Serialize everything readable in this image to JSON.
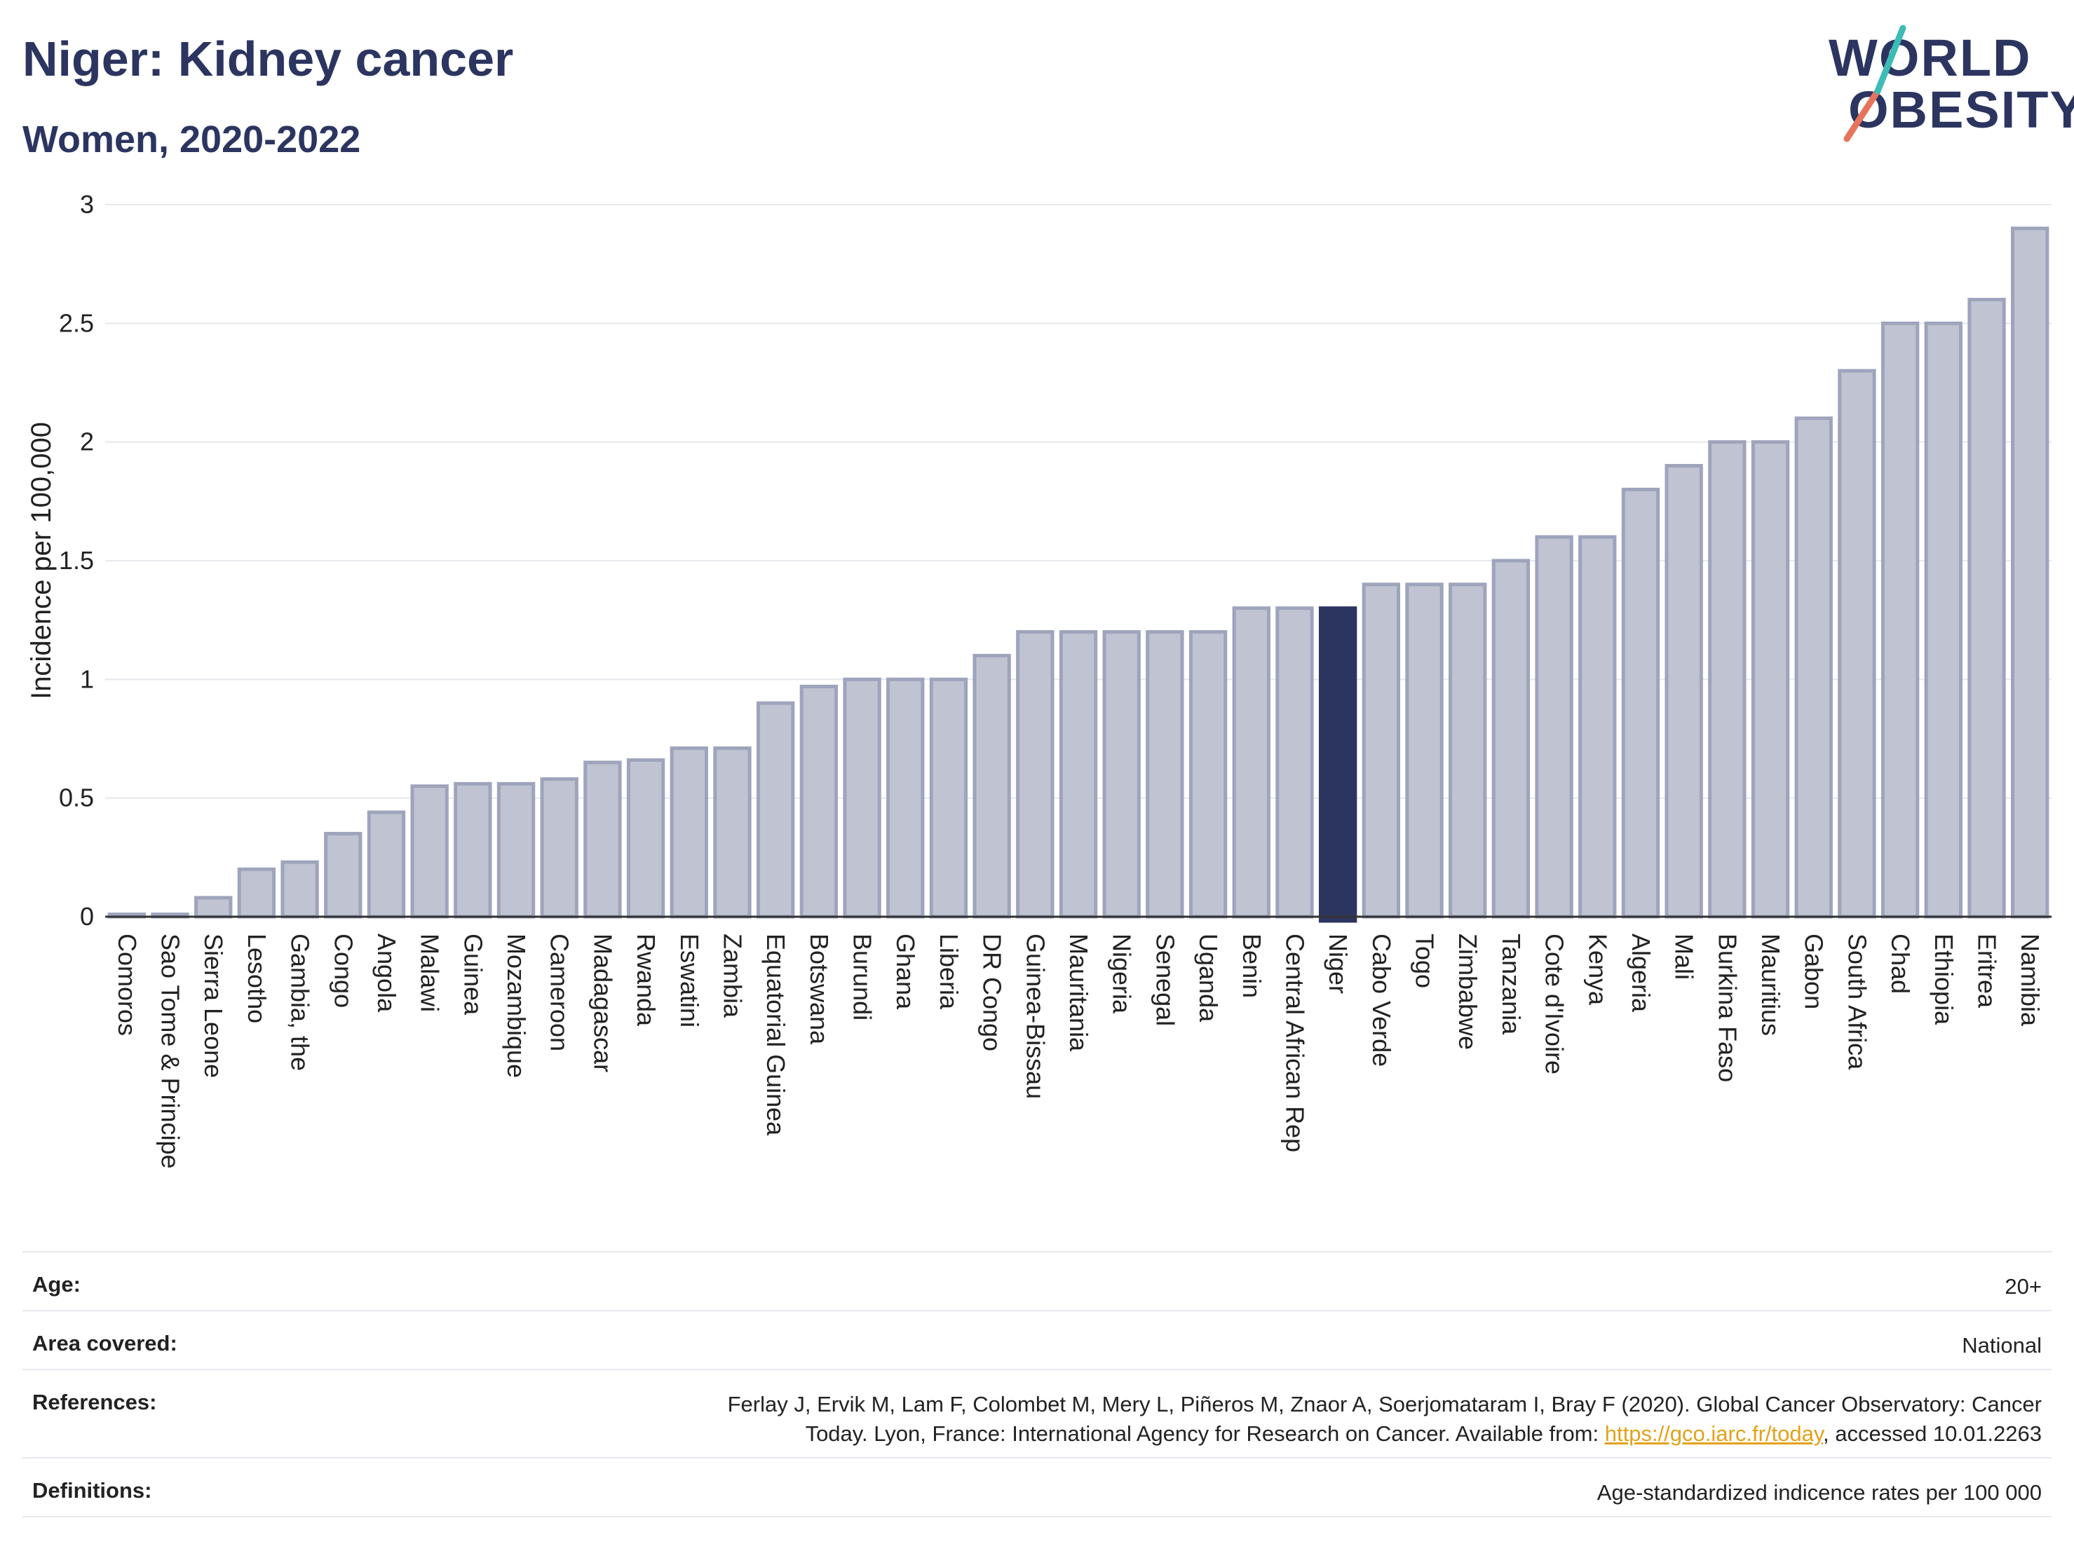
{
  "title": "Niger: Kidney cancer",
  "subtitle": "Women, 2020-2022",
  "logo": {
    "line1": "WORLD",
    "line2": "OBESITY"
  },
  "colors": {
    "bar": "#bfc3d2",
    "bar_stroke": "#9ea4bc",
    "highlight": "#2b3560",
    "grid": "#e6e8ee",
    "axis": "#333333",
    "text": "#222222"
  },
  "chart_data": {
    "type": "bar",
    "ylabel": "Incidence per 100,000",
    "ylim": [
      0,
      3
    ],
    "yticks": [
      0,
      0.5,
      1,
      1.5,
      2,
      2.5,
      3
    ],
    "ytick_labels": [
      "0",
      "0.5",
      "1",
      "1.5",
      "2",
      "2.5",
      "3"
    ],
    "highlight": "Niger",
    "grid": true,
    "categories": [
      "Comoros",
      "Sao Tome & Principe",
      "Sierra Leone",
      "Lesotho",
      "Gambia, the",
      "Congo",
      "Angola",
      "Malawi",
      "Guinea",
      "Mozambique",
      "Cameroon",
      "Madagascar",
      "Rwanda",
      "Eswatini",
      "Zambia",
      "Equatorial Guinea",
      "Botswana",
      "Burundi",
      "Ghana",
      "Liberia",
      "DR Congo",
      "Guinea-Bissau",
      "Mauritania",
      "Nigeria",
      "Senegal",
      "Uganda",
      "Benin",
      "Central African Rep",
      "Niger",
      "Cabo Verde",
      "Togo",
      "Zimbabwe",
      "Tanzania",
      "Cote d'Ivoire",
      "Kenya",
      "Algeria",
      "Mali",
      "Burkina Faso",
      "Mauritius",
      "Gabon",
      "South Africa",
      "Chad",
      "Ethiopia",
      "Eritrea",
      "Namibia"
    ],
    "values": [
      0.01,
      0.01,
      0.08,
      0.2,
      0.23,
      0.35,
      0.44,
      0.55,
      0.56,
      0.56,
      0.58,
      0.65,
      0.66,
      0.71,
      0.71,
      0.9,
      0.97,
      1.0,
      1.0,
      1.0,
      1.1,
      1.2,
      1.2,
      1.2,
      1.2,
      1.2,
      1.3,
      1.3,
      1.3,
      1.4,
      1.4,
      1.4,
      1.5,
      1.6,
      1.6,
      1.8,
      1.9,
      2.0,
      2.0,
      2.1,
      2.3,
      2.5,
      2.5,
      2.6,
      2.9
    ]
  },
  "meta": {
    "age_label": "Age:",
    "age_value": "20+",
    "area_label": "Area covered:",
    "area_value": "National",
    "references_label": "References:",
    "references_line1": "Ferlay J, Ervik M, Lam F, Colombet M, Mery L, Piñeros M, Znaor A, Soerjomataram I, Bray F (2020). Global Cancer Observatory: Cancer",
    "references_line2_pre": "Today. Lyon, France: International Agency for Research on Cancer. Available from: ",
    "references_link": "https://gco.iarc.fr/today",
    "references_line2_post": ", accessed 10.01.2263",
    "definitions_label": "Definitions:",
    "definitions_value": "Age-standardized indicence rates per 100 000"
  }
}
